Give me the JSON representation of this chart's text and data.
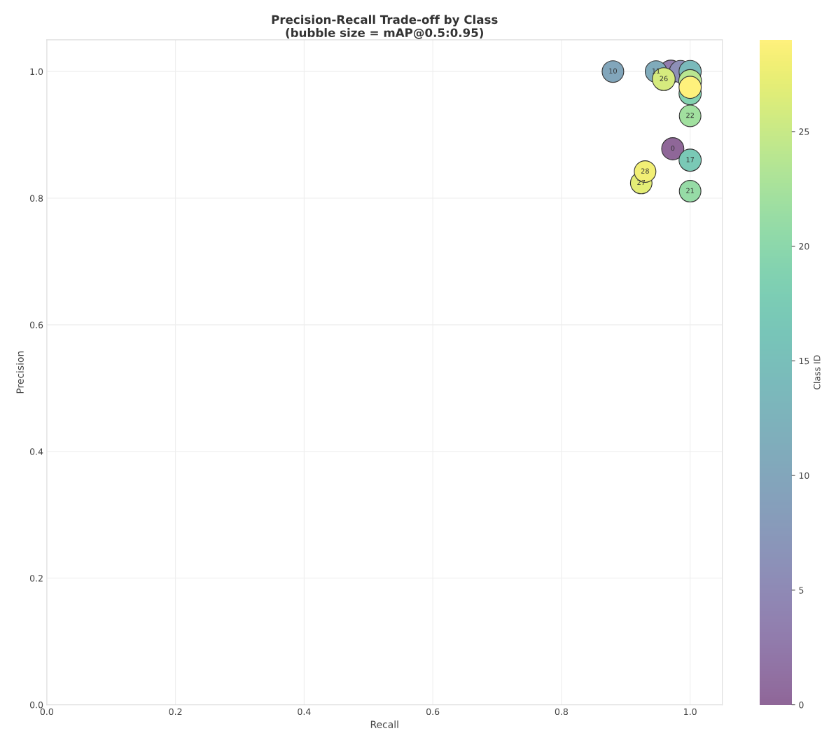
{
  "chart_data": {
    "type": "bubble",
    "title": "Precision-Recall Trade-off by Class\n(bubble size = mAP@0.5:0.95)",
    "xlabel": "Recall",
    "ylabel": "Precision",
    "clabel": "Class ID",
    "x": [
      0.973,
      0.97,
      0.985,
      0.88,
      0.947,
      1.0,
      1.0,
      1.0,
      1.0,
      1.0,
      1.0,
      0.959,
      0.924,
      0.93,
      1.0
    ],
    "values": [
      0.878,
      1.0,
      1.0,
      1.0,
      1.0,
      1.0,
      0.86,
      0.965,
      0.811,
      0.93,
      0.985,
      0.988,
      0.824,
      0.842,
      0.975
    ],
    "cvalues": [
      0,
      3,
      6,
      10,
      11,
      14,
      17,
      19,
      21,
      22,
      24,
      26,
      27,
      28,
      29
    ],
    "sizes": [
      0.95,
      1,
      0.95,
      0.9,
      0.9,
      0.95,
      0.95,
      0.95,
      0.9,
      0.9,
      1,
      1,
      0.9,
      0.9,
      0.95
    ],
    "xlim": [
      0,
      1.05
    ],
    "ylim": [
      0,
      1.05
    ],
    "xticks": [
      {
        "value": 0,
        "label": "0.0"
      },
      0.2,
      0.4,
      0.6,
      0.8,
      {
        "value": 1,
        "label": "1.0"
      }
    ],
    "yticks": [
      {
        "value": 0,
        "label": "0.0"
      },
      0.2,
      0.4,
      0.6,
      0.8,
      {
        "value": 1,
        "label": "1.0"
      }
    ],
    "clim": [
      0,
      29
    ],
    "cticks": [
      0,
      5,
      10,
      15,
      20,
      25
    ],
    "grid": true,
    "annotations": [
      {
        "text": "0",
        "x": 0.973,
        "y": 0.878
      },
      {
        "text": "10",
        "x": 0.88,
        "y": 1.0
      },
      {
        "text": "11",
        "x": 0.947,
        "y": 1.0
      },
      {
        "text": "17",
        "x": 1.0,
        "y": 0.86
      },
      {
        "text": "21",
        "x": 1.0,
        "y": 0.811
      },
      {
        "text": "22",
        "x": 1.0,
        "y": 0.93
      },
      {
        "text": "26",
        "x": 0.959,
        "y": 0.988
      },
      {
        "text": "27",
        "x": 0.924,
        "y": 0.824
      },
      {
        "text": "28",
        "x": 0.93,
        "y": 0.842
      }
    ]
  }
}
